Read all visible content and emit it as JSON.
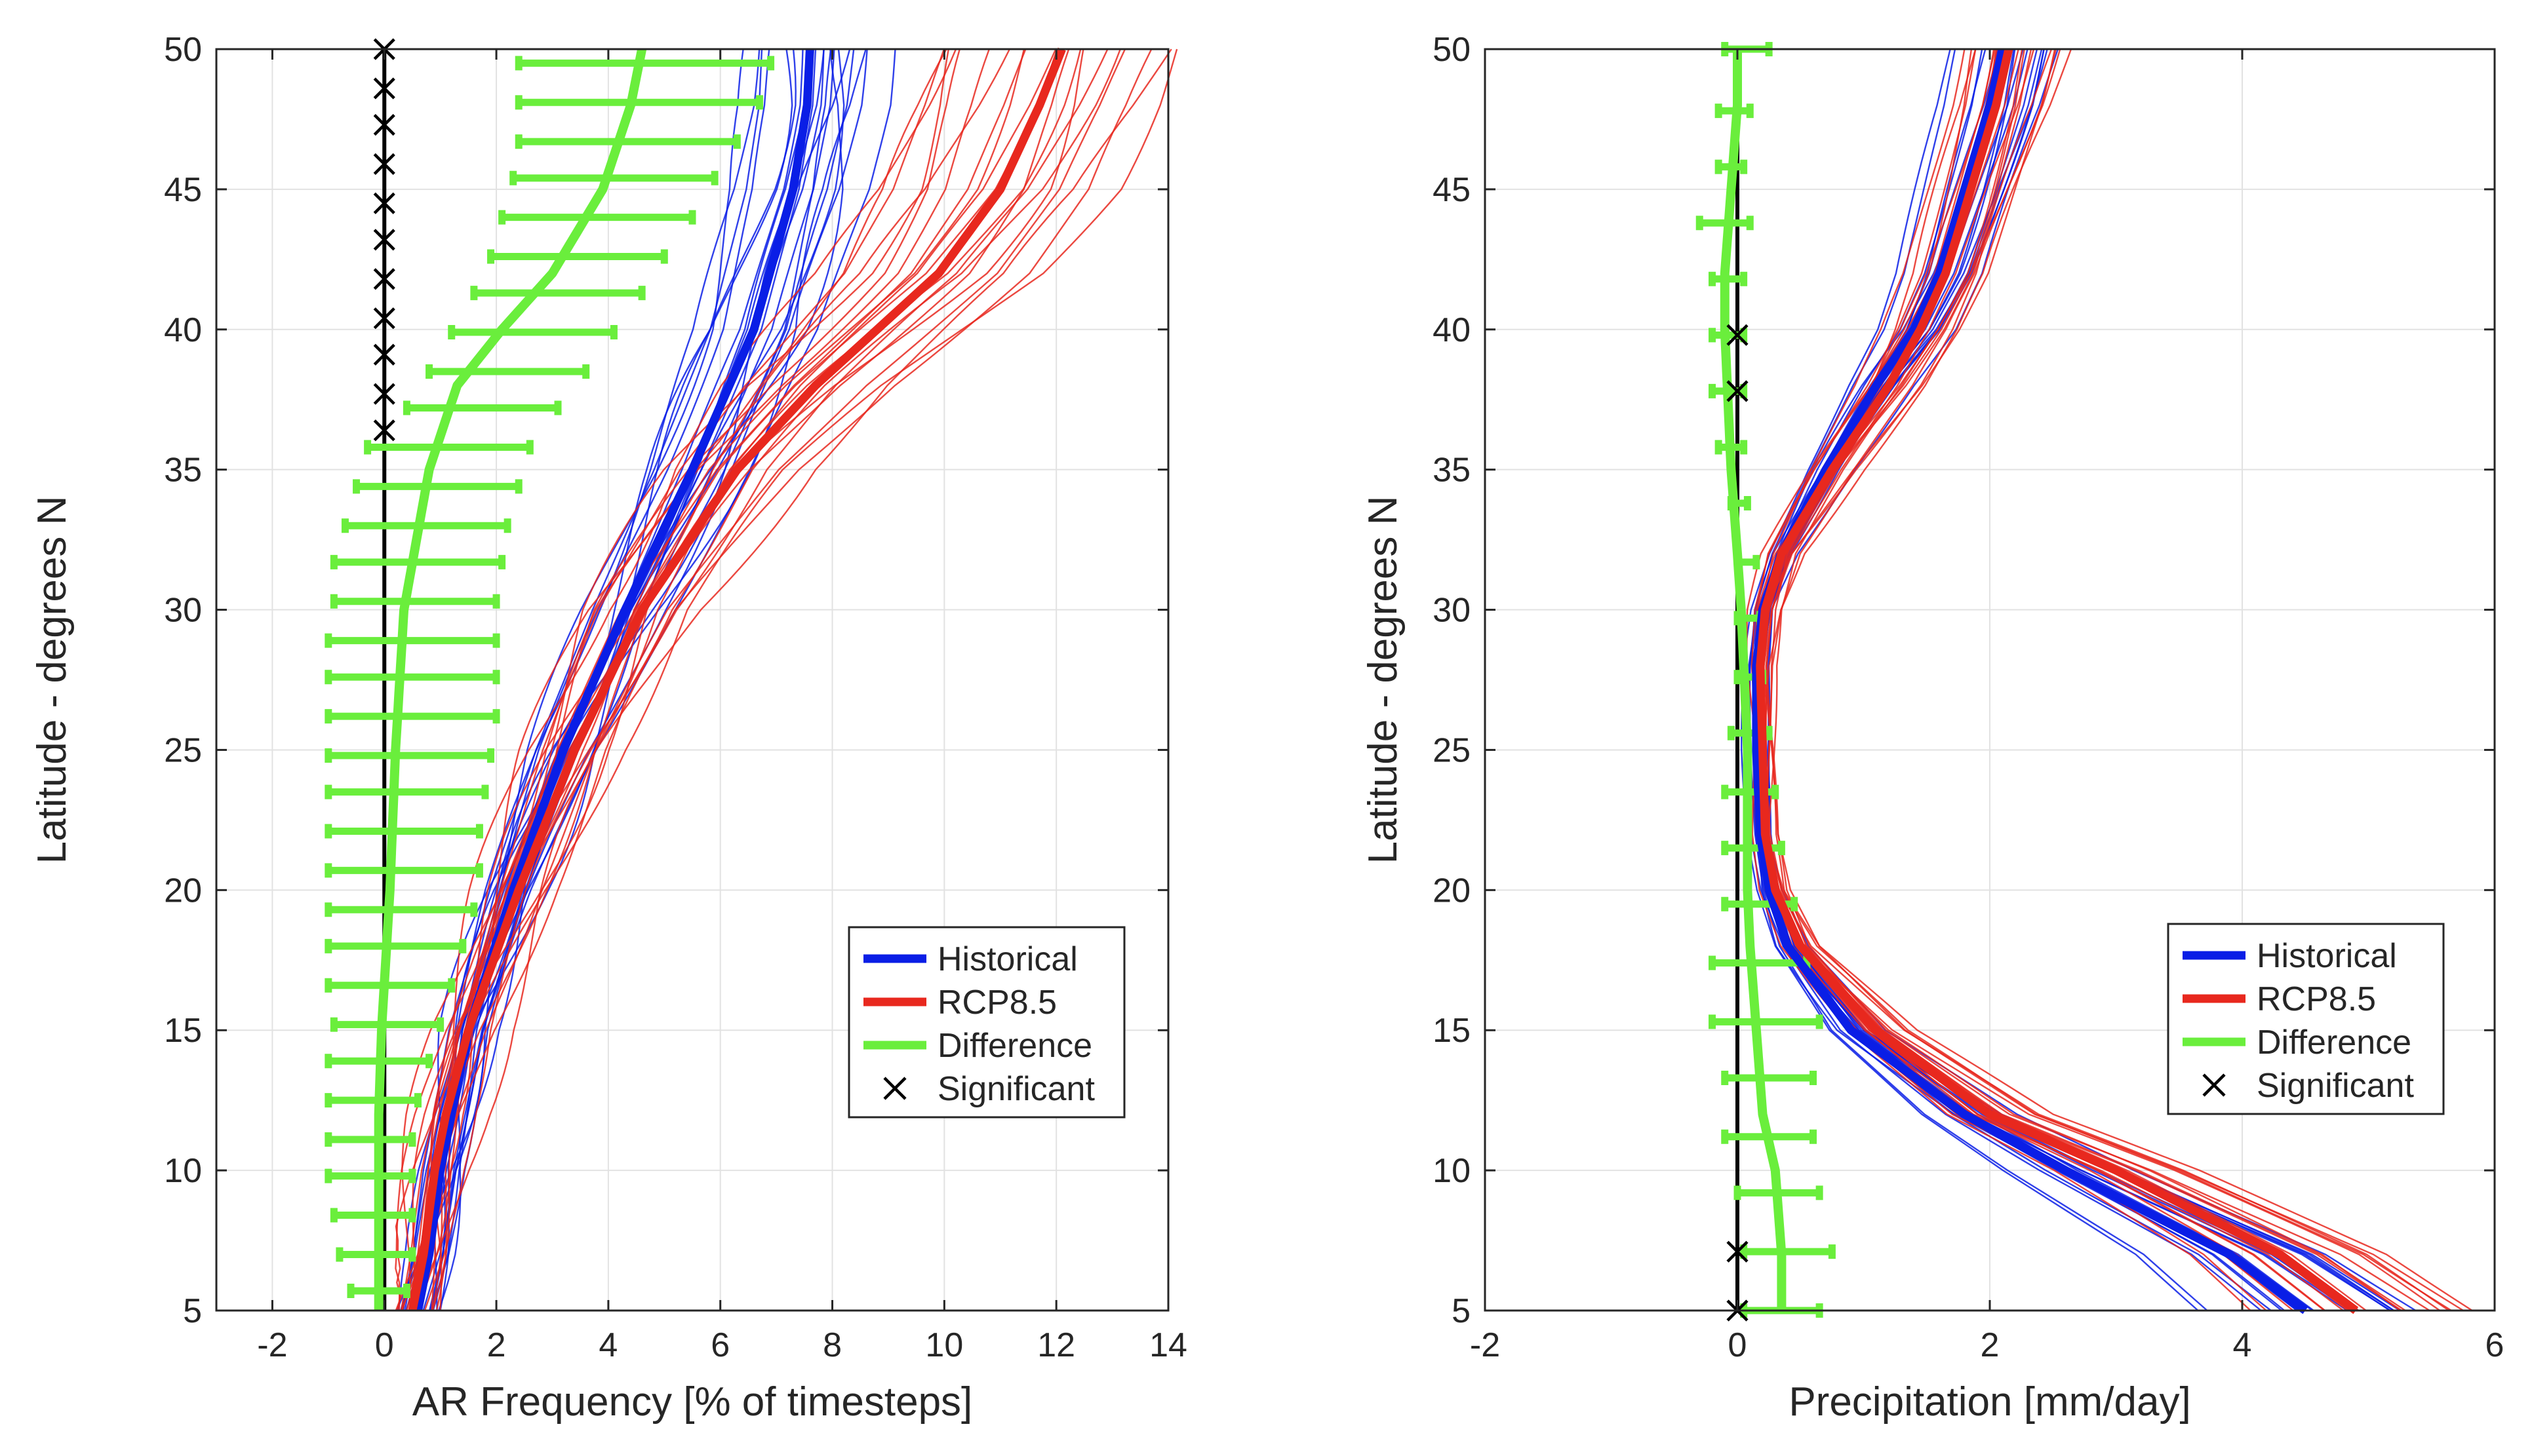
{
  "chart_data": [
    {
      "type": "line",
      "xlabel": "AR Frequency [% of timesteps]",
      "ylabel": "Latitude - degrees N",
      "xlim": [
        -3,
        14
      ],
      "ylim": [
        5,
        50
      ],
      "xticks": [
        "-2",
        "0",
        "2",
        "4",
        "6",
        "8",
        "10",
        "12",
        "14"
      ],
      "yticks": [
        "5",
        "10",
        "15",
        "20",
        "25",
        "30",
        "35",
        "40",
        "45",
        "50"
      ],
      "grid": true,
      "legend_position": "lower-right",
      "legend": [
        {
          "label": "Historical",
          "color": "#0a1ee6",
          "marker": "line"
        },
        {
          "label": "RCP8.5",
          "color": "#e8281e",
          "marker": "line"
        },
        {
          "label": "Difference",
          "color": "#6aee3c",
          "marker": "line"
        },
        {
          "label": "Significant",
          "color": "#000000",
          "marker": "x"
        }
      ],
      "series": [
        {
          "name": "Historical",
          "color": "#0a1ee6",
          "lat": [
            5,
            7,
            10,
            12,
            15,
            20,
            25,
            30,
            35,
            40,
            45,
            48,
            50
          ],
          "x": [
            0.6,
            0.8,
            1.0,
            1.2,
            1.5,
            2.3,
            3.2,
            4.3,
            5.5,
            6.6,
            7.3,
            7.55,
            7.6
          ]
        },
        {
          "name": "RCP8.5",
          "color": "#e8281e",
          "lat": [
            5,
            7,
            10,
            12,
            15,
            20,
            25,
            30,
            35,
            38,
            40,
            42,
            45,
            48,
            50
          ],
          "x": [
            0.5,
            0.7,
            0.9,
            1.1,
            1.5,
            2.4,
            3.4,
            4.6,
            6.3,
            7.7,
            8.8,
            9.9,
            11.0,
            11.7,
            12.1
          ]
        },
        {
          "name": "Difference",
          "color": "#6aee3c",
          "lat": [
            5,
            7,
            10,
            12,
            15,
            20,
            25,
            30,
            35,
            38,
            40,
            42,
            45,
            48,
            50
          ],
          "x": [
            -0.1,
            -0.1,
            -0.1,
            -0.1,
            -0.05,
            0.1,
            0.2,
            0.35,
            0.8,
            1.3,
            2.1,
            3.0,
            3.9,
            4.4,
            4.6
          ]
        }
      ],
      "error_bars": {
        "lat": [
          5.7,
          7.0,
          8.4,
          9.8,
          11.1,
          12.5,
          13.9,
          15.2,
          16.6,
          18.0,
          19.3,
          20.7,
          22.1,
          23.5,
          24.8,
          26.2,
          27.6,
          28.9,
          30.3,
          31.7,
          33.0,
          34.4,
          35.8,
          37.2,
          38.5,
          39.9,
          41.3,
          42.6,
          44.0,
          45.4,
          46.7,
          48.1,
          49.5
        ],
        "low": [
          -0.6,
          -0.8,
          -0.9,
          -1.0,
          -1.0,
          -1.0,
          -1.0,
          -0.9,
          -1.0,
          -1.0,
          -1.0,
          -1.0,
          -1.0,
          -1.0,
          -1.0,
          -1.0,
          -1.0,
          -1.0,
          -0.9,
          -0.9,
          -0.7,
          -0.5,
          -0.3,
          0.4,
          0.8,
          1.2,
          1.6,
          1.9,
          2.1,
          2.3,
          2.4,
          2.4,
          2.4
        ],
        "high": [
          0.4,
          0.5,
          0.5,
          0.5,
          0.5,
          0.6,
          0.8,
          1.0,
          1.2,
          1.4,
          1.6,
          1.7,
          1.7,
          1.8,
          1.9,
          2.0,
          2.0,
          2.0,
          2.0,
          2.1,
          2.2,
          2.4,
          2.6,
          3.1,
          3.6,
          4.1,
          4.6,
          5.0,
          5.5,
          5.9,
          6.3,
          6.7,
          6.9
        ]
      },
      "significant": {
        "x": 0,
        "lat": [
          36.4,
          37.7,
          39.1,
          40.4,
          41.8,
          43.2,
          44.5,
          45.9,
          47.3,
          48.6,
          50.0
        ]
      }
    },
    {
      "type": "line",
      "xlabel": "Precipitation  [mm/day]",
      "ylabel": "Latitude - degrees N",
      "xlim": [
        -2,
        6
      ],
      "ylim": [
        5,
        50
      ],
      "xticks": [
        "-2",
        "0",
        "2",
        "4",
        "6"
      ],
      "yticks": [
        "5",
        "10",
        "15",
        "20",
        "25",
        "30",
        "35",
        "40",
        "45",
        "50"
      ],
      "grid": true,
      "legend_position": "lower-right",
      "legend": [
        {
          "label": "Historical",
          "color": "#0a1ee6",
          "marker": "line"
        },
        {
          "label": "RCP8.5",
          "color": "#e8281e",
          "marker": "line"
        },
        {
          "label": "Difference",
          "color": "#6aee3c",
          "marker": "line"
        },
        {
          "label": "Significant",
          "color": "#000000",
          "marker": "x"
        }
      ],
      "series": [
        {
          "name": "Historical",
          "color": "#0a1ee6",
          "lat": [
            5,
            7,
            10,
            12,
            15,
            18,
            20,
            22,
            25,
            28,
            30,
            32,
            35,
            38,
            40,
            42,
            45,
            48,
            50
          ],
          "x": [
            4.5,
            3.9,
            2.6,
            1.8,
            0.9,
            0.4,
            0.25,
            0.18,
            0.15,
            0.15,
            0.2,
            0.35,
            0.7,
            1.1,
            1.4,
            1.6,
            1.8,
            2.0,
            2.1
          ]
        },
        {
          "name": "RCP8.5",
          "color": "#e8281e",
          "lat": [
            5,
            7,
            10,
            12,
            15,
            18,
            20,
            22,
            25,
            28,
            30,
            32,
            35,
            38,
            40,
            42,
            45,
            48,
            50
          ],
          "x": [
            4.9,
            4.3,
            3.0,
            2.0,
            1.1,
            0.5,
            0.3,
            0.22,
            0.2,
            0.18,
            0.22,
            0.35,
            0.75,
            1.2,
            1.45,
            1.65,
            1.85,
            2.05,
            2.15
          ]
        },
        {
          "name": "Difference",
          "color": "#6aee3c",
          "lat": [
            5,
            7,
            10,
            12,
            15,
            18,
            20,
            22,
            25,
            28,
            30,
            32,
            35,
            38,
            40,
            42,
            45,
            48,
            50
          ],
          "x": [
            0.35,
            0.35,
            0.3,
            0.2,
            0.15,
            0.1,
            0.08,
            0.08,
            0.08,
            0.05,
            0.03,
            0.0,
            -0.05,
            -0.08,
            -0.1,
            -0.1,
            -0.05,
            0.0,
            0.0
          ]
        }
      ],
      "error_bars": {
        "lat": [
          5.0,
          7.1,
          9.2,
          11.2,
          13.3,
          15.3,
          17.4,
          19.5,
          21.5,
          23.5,
          25.6,
          27.6,
          29.7,
          31.7,
          33.8,
          35.8,
          37.8,
          39.8,
          41.8,
          43.8,
          45.8,
          47.8,
          50.0
        ],
        "low": [
          0.05,
          0.05,
          0.0,
          -0.1,
          -0.1,
          -0.2,
          -0.2,
          -0.1,
          -0.1,
          -0.1,
          -0.05,
          0.0,
          0.0,
          0.0,
          -0.05,
          -0.15,
          -0.2,
          -0.2,
          -0.2,
          -0.3,
          -0.15,
          -0.15,
          -0.1
        ],
        "high": [
          0.65,
          0.75,
          0.65,
          0.6,
          0.6,
          0.65,
          0.55,
          0.45,
          0.35,
          0.3,
          0.25,
          0.2,
          0.18,
          0.15,
          0.08,
          0.05,
          0.05,
          0.05,
          0.05,
          0.1,
          0.05,
          0.1,
          0.25
        ]
      },
      "significant": {
        "x": 0,
        "lat": [
          5.0,
          7.1,
          37.8,
          39.8
        ]
      }
    }
  ]
}
